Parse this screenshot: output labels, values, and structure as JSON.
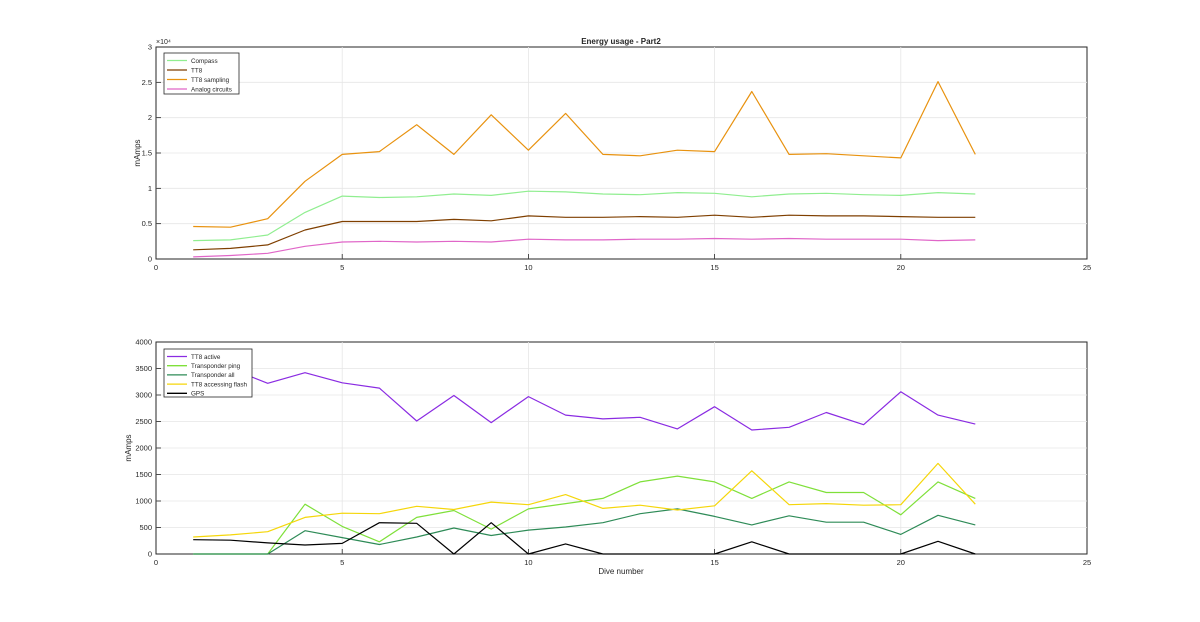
{
  "chart_data": [
    {
      "type": "line",
      "title": "Energy usage - Part2",
      "xlabel": "",
      "ylabel": "mAmps",
      "xlim": [
        0,
        25
      ],
      "ylim": [
        0,
        30000
      ],
      "xticks": [
        0,
        5,
        10,
        15,
        20,
        25
      ],
      "yticks": [
        0,
        5000,
        10000,
        15000,
        20000,
        25000,
        30000
      ],
      "ytick_labels": [
        "0",
        "0.5",
        "1",
        "1.5",
        "2",
        "2.5",
        "3"
      ],
      "exponent_label": "×10⁴",
      "grid": true,
      "legend_position": "top-left",
      "x": [
        1,
        2,
        3,
        4,
        5,
        6,
        7,
        8,
        9,
        10,
        11,
        12,
        13,
        14,
        15,
        16,
        17,
        18,
        19,
        20,
        21,
        22
      ],
      "series": [
        {
          "name": "Compass",
          "color": "#90ee90",
          "values": [
            2600,
            2700,
            3400,
            6600,
            8900,
            8700,
            8800,
            9200,
            9000,
            9600,
            9500,
            9200,
            9100,
            9400,
            9300,
            8800,
            9200,
            9300,
            9100,
            9000,
            9400,
            9200
          ]
        },
        {
          "name": "TT8",
          "color": "#7f3f00",
          "values": [
            1300,
            1500,
            2000,
            4100,
            5300,
            5300,
            5300,
            5600,
            5400,
            6100,
            5900,
            5900,
            6000,
            5900,
            6200,
            5900,
            6200,
            6100,
            6100,
            6000,
            5900,
            5900
          ]
        },
        {
          "name": "TT8 sampling",
          "color": "#e8920f",
          "values": [
            4600,
            4500,
            5700,
            11000,
            14800,
            15200,
            19000,
            14800,
            20400,
            15400,
            20600,
            14800,
            14600,
            15400,
            15200,
            23700,
            14800,
            14900,
            14600,
            14300,
            25100,
            14800
          ]
        },
        {
          "name": "Analog circuits",
          "color": "#e066c8",
          "values": [
            300,
            500,
            800,
            1800,
            2400,
            2500,
            2400,
            2500,
            2400,
            2800,
            2700,
            2700,
            2800,
            2800,
            2900,
            2800,
            2900,
            2800,
            2800,
            2800,
            2600,
            2700
          ]
        }
      ]
    },
    {
      "type": "line",
      "title": "",
      "xlabel": "Dive number",
      "ylabel": "mAmps",
      "xlim": [
        0,
        25
      ],
      "ylim": [
        0,
        4000
      ],
      "xticks": [
        0,
        5,
        10,
        15,
        20,
        25
      ],
      "yticks": [
        0,
        500,
        1000,
        1500,
        2000,
        2500,
        3000,
        3500,
        4000
      ],
      "ytick_labels": [
        "0",
        "500",
        "1000",
        "1500",
        "2000",
        "2500",
        "3000",
        "3500",
        "4000"
      ],
      "grid": true,
      "legend_position": "top-left",
      "x": [
        1,
        2,
        3,
        4,
        5,
        6,
        7,
        8,
        9,
        10,
        11,
        12,
        13,
        14,
        15,
        16,
        17,
        18,
        19,
        20,
        21,
        22
      ],
      "series": [
        {
          "name": "TT8 active",
          "color": "#8a2be2",
          "values": [
            3600,
            3500,
            3220,
            3420,
            3230,
            3130,
            2510,
            2990,
            2480,
            2970,
            2620,
            2550,
            2580,
            2360,
            2780,
            2340,
            2390,
            2670,
            2440,
            3060,
            2620,
            2450
          ]
        },
        {
          "name": "Transponder ping",
          "color": "#7fe03a",
          "values": [
            0,
            0,
            0,
            940,
            520,
            230,
            690,
            820,
            470,
            850,
            950,
            1050,
            1360,
            1470,
            1360,
            1050,
            1360,
            1160,
            1160,
            740,
            1360,
            1050
          ]
        },
        {
          "name": "Transponder all",
          "color": "#2e8b57",
          "values": [
            0,
            0,
            0,
            440,
            310,
            180,
            320,
            490,
            350,
            450,
            510,
            590,
            760,
            850,
            710,
            550,
            720,
            600,
            600,
            370,
            730,
            550
          ]
        },
        {
          "name": "TT8 accessing flash",
          "color": "#f5d60a",
          "values": [
            320,
            360,
            420,
            690,
            770,
            760,
            900,
            840,
            980,
            930,
            1120,
            860,
            920,
            830,
            910,
            1570,
            930,
            950,
            920,
            930,
            1710,
            940
          ]
        },
        {
          "name": "GPS",
          "color": "#000000",
          "values": [
            270,
            260,
            210,
            170,
            200,
            590,
            580,
            0,
            590,
            0,
            190,
            0,
            0,
            0,
            0,
            230,
            0,
            0,
            0,
            0,
            240,
            0
          ]
        }
      ]
    }
  ]
}
